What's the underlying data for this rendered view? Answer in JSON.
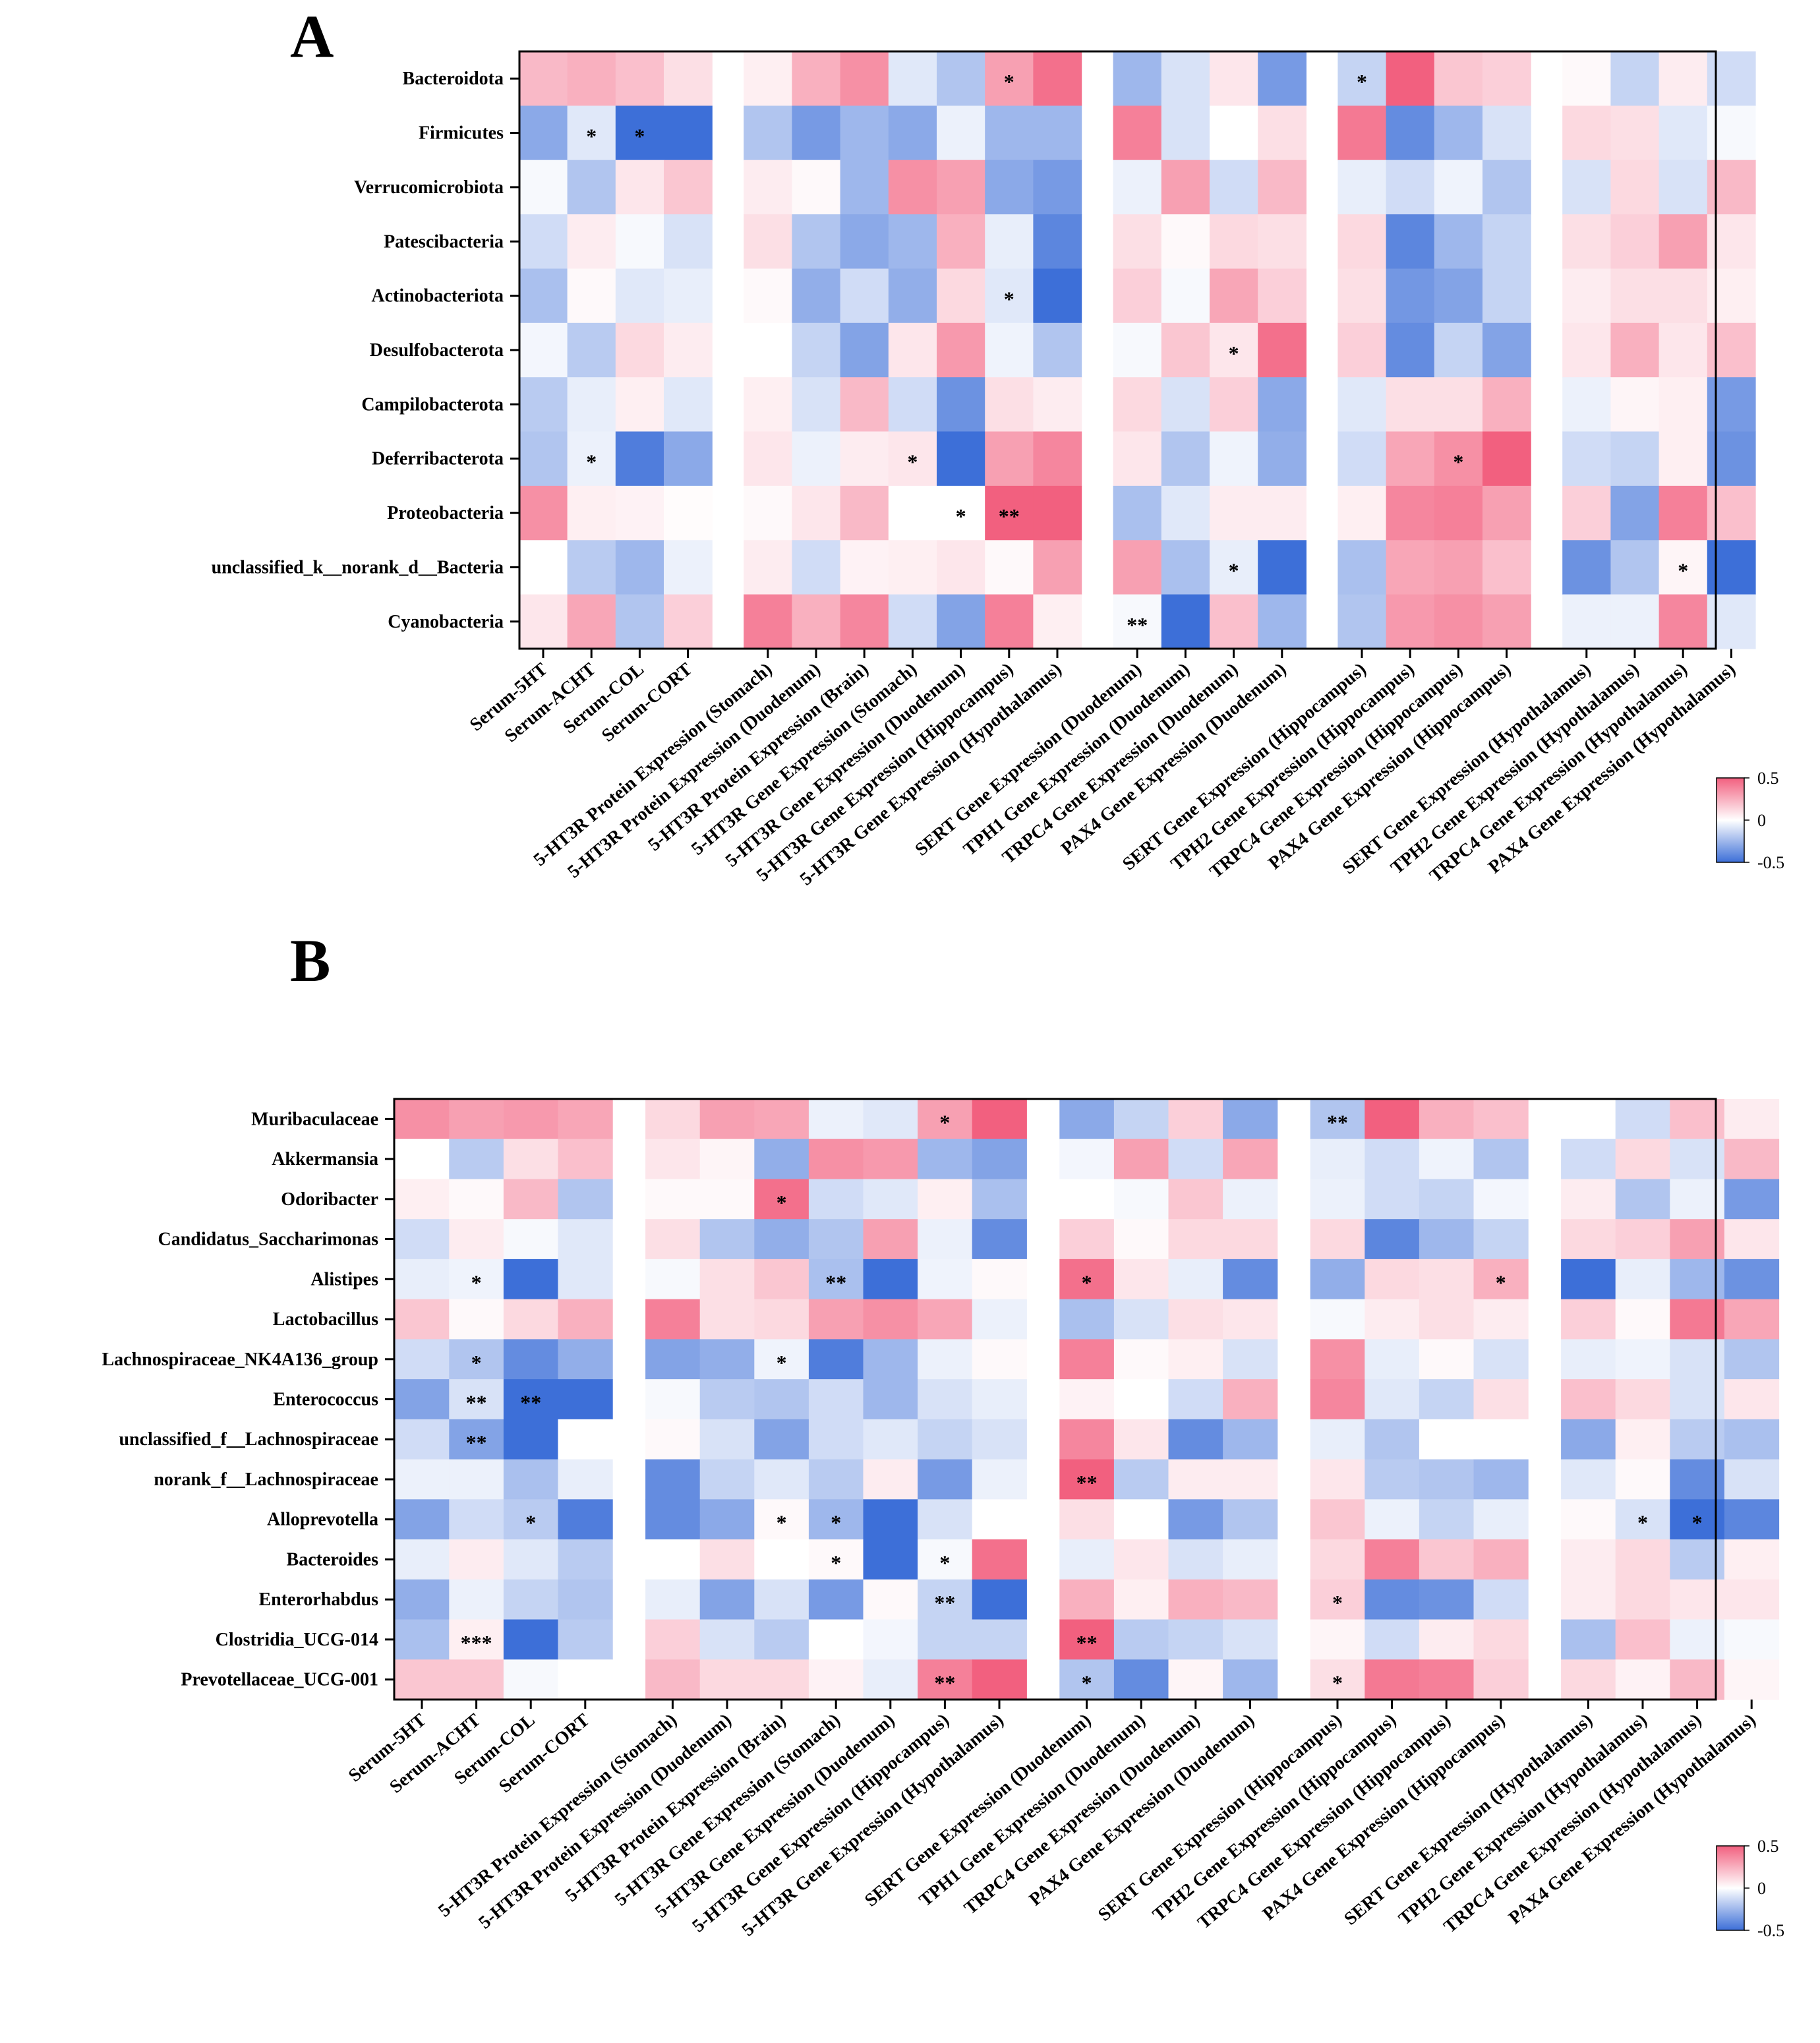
{
  "colors": {
    "neg": "#3d6fd8",
    "mid": "#ffffff",
    "pos": "#f2607f"
  },
  "legend": {
    "max_label": "0.5",
    "mid_label": "0",
    "min_label": "-0.5"
  },
  "columns": [
    "Serum-5HT",
    "Serum-ACHT",
    "Serum-COL",
    "Serum-CORT",
    "5-HT3R Protein Expression (Stomach)",
    "5-HT3R Protein Expression (Duodenum)",
    "5-HT3R Protein Expression (Brain)",
    "5-HT3R Gene Expression (Stomach)",
    "5-HT3R Gene Expression (Duodenum)",
    "5-HT3R Gene Expression (Hippocampus)",
    "5-HT3R Gene Expression (Hypothalamus)",
    "SERT Gene Expression (Duodenum)",
    "TPH1 Gene Expression (Duodenum)",
    "TRPC4 Gene Expression (Duodenum)",
    "PAX4 Gene Expression (Duodenum)",
    "SERT Gene Expression (Hippocampus)",
    "TPH2 Gene Expression (Hippocampus)",
    "TRPC4 Gene Expression (Hippocampus)",
    "PAX4 Gene Expression (Hippocampus)",
    "SERT Gene Expression (Hypothalamus)",
    "TPH2 Gene Expression (Hypothalamus)",
    "TRPC4 Gene Expression (Hypothalamus)",
    "PAX4 Gene Expression (Hypothalamus)"
  ],
  "chart_data": [
    {
      "type": "heatmap",
      "panel": "A",
      "title": "",
      "color_range": [
        -0.5,
        0.5
      ],
      "rows": [
        "Bacteroidota",
        "Firmicutes",
        "Verrucomicrobiota",
        "Patescibacteria",
        "Actinobacteriota",
        "Desulfobacterota",
        "Campilobacterota",
        "Deferribacterota",
        "Proteobacteria",
        "unclassified_k__norank_d__Bacteria",
        "Cyanobacteria"
      ],
      "values": [
        [
          0.22,
          0.25,
          0.2,
          0.1,
          0.05,
          0.25,
          0.35,
          -0.08,
          -0.2,
          0.3,
          0.45,
          -0.25,
          -0.1,
          0.08,
          -0.35,
          -0.15,
          0.5,
          0.18,
          0.15,
          0.02,
          -0.15,
          0.06,
          -0.12
        ],
        [
          -0.3,
          -0.08,
          -0.55,
          -0.5,
          -0.2,
          -0.35,
          -0.25,
          -0.3,
          -0.05,
          -0.25,
          -0.25,
          0.4,
          -0.1,
          0.0,
          0.1,
          0.42,
          -0.4,
          -0.25,
          -0.1,
          0.12,
          0.1,
          -0.08,
          -0.02
        ],
        [
          -0.02,
          -0.2,
          0.08,
          0.18,
          0.06,
          0.02,
          -0.25,
          0.35,
          0.3,
          -0.3,
          -0.35,
          -0.05,
          0.3,
          -0.12,
          0.22,
          -0.06,
          -0.12,
          -0.04,
          -0.2,
          -0.1,
          0.12,
          -0.1,
          0.22
        ],
        [
          -0.12,
          0.06,
          -0.02,
          -0.1,
          0.1,
          -0.2,
          -0.3,
          -0.25,
          0.25,
          -0.06,
          -0.42,
          0.1,
          0.02,
          0.12,
          0.1,
          0.12,
          -0.42,
          -0.25,
          -0.15,
          0.1,
          0.15,
          0.3,
          0.08
        ],
        [
          -0.22,
          0.02,
          -0.08,
          -0.06,
          0.02,
          -0.28,
          -0.12,
          -0.28,
          0.12,
          -0.08,
          -0.55,
          0.15,
          -0.02,
          0.28,
          0.15,
          0.1,
          -0.36,
          -0.32,
          -0.15,
          0.06,
          0.1,
          0.1,
          0.05
        ],
        [
          -0.03,
          -0.18,
          0.12,
          0.06,
          0.0,
          -0.15,
          -0.32,
          0.08,
          0.32,
          -0.04,
          -0.2,
          -0.02,
          0.18,
          0.08,
          0.45,
          0.15,
          -0.4,
          -0.15,
          -0.32,
          0.08,
          0.25,
          0.08,
          0.2
        ],
        [
          -0.18,
          -0.06,
          0.05,
          -0.08,
          0.05,
          -0.1,
          0.22,
          -0.12,
          -0.38,
          0.1,
          0.06,
          0.12,
          -0.1,
          0.15,
          -0.3,
          -0.08,
          0.1,
          0.1,
          0.25,
          -0.05,
          0.03,
          0.05,
          -0.35
        ],
        [
          -0.2,
          -0.05,
          -0.45,
          -0.3,
          0.08,
          -0.05,
          0.06,
          0.08,
          -0.55,
          0.3,
          0.38,
          0.08,
          -0.2,
          -0.04,
          -0.28,
          -0.12,
          0.28,
          0.35,
          0.5,
          -0.12,
          -0.15,
          0.05,
          -0.38
        ],
        [
          0.35,
          0.05,
          0.04,
          0.01,
          0.02,
          0.08,
          0.22,
          0.0,
          0.0,
          0.55,
          0.55,
          -0.22,
          -0.08,
          0.06,
          0.06,
          0.05,
          0.38,
          0.4,
          0.3,
          0.15,
          -0.32,
          0.4,
          0.2
        ],
        [
          0.0,
          -0.18,
          -0.25,
          -0.05,
          0.06,
          -0.12,
          0.04,
          0.05,
          0.08,
          0.02,
          0.3,
          0.3,
          -0.22,
          -0.06,
          -0.6,
          -0.22,
          0.28,
          0.3,
          0.2,
          -0.38,
          -0.2,
          0.03,
          -0.55
        ],
        [
          0.08,
          0.28,
          -0.2,
          0.15,
          0.4,
          0.25,
          0.38,
          -0.12,
          -0.32,
          0.4,
          0.05,
          -0.02,
          -0.65,
          0.2,
          -0.25,
          -0.2,
          0.32,
          0.35,
          0.3,
          -0.05,
          -0.05,
          0.38,
          -0.08
        ]
      ],
      "stars": [
        [
          0,
          9,
          "*"
        ],
        [
          0,
          15,
          "*"
        ],
        [
          1,
          1,
          "*"
        ],
        [
          1,
          2,
          "*"
        ],
        [
          4,
          9,
          "*"
        ],
        [
          5,
          13,
          "*"
        ],
        [
          7,
          1,
          "*"
        ],
        [
          7,
          7,
          "*"
        ],
        [
          7,
          17,
          "*"
        ],
        [
          8,
          8,
          "*"
        ],
        [
          8,
          9,
          "**"
        ],
        [
          9,
          13,
          "*"
        ],
        [
          9,
          21,
          "*"
        ],
        [
          10,
          11,
          "**"
        ]
      ]
    },
    {
      "type": "heatmap",
      "panel": "B",
      "title": "",
      "color_range": [
        -0.5,
        0.5
      ],
      "rows": [
        "Muribaculaceae",
        "Akkermansia",
        "Odoribacter",
        "Candidatus_Saccharimonas",
        "Alistipes",
        "Lactobacillus",
        "Lachnospiraceae_NK4A136_group",
        "Enterococcus",
        "unclassified_f__Lachnospiraceae",
        "norank_f__Lachnospiraceae",
        "Alloprevotella",
        "Bacteroides",
        "Enterorhabdus",
        "Clostridia_UCG-014",
        "Prevotellaceae_UCG-001"
      ],
      "values": [
        [
          0.35,
          0.3,
          0.32,
          0.28,
          0.12,
          0.3,
          0.28,
          -0.05,
          -0.08,
          0.3,
          0.55,
          -0.3,
          -0.15,
          0.15,
          -0.3,
          -0.2,
          0.55,
          0.25,
          0.2,
          0.0,
          -0.12,
          0.2,
          0.06
        ],
        [
          0.0,
          -0.18,
          0.1,
          0.2,
          0.08,
          0.03,
          -0.28,
          0.35,
          0.32,
          -0.25,
          -0.32,
          -0.03,
          0.3,
          -0.12,
          0.28,
          -0.06,
          -0.12,
          -0.04,
          -0.2,
          -0.12,
          0.12,
          -0.1,
          0.22
        ],
        [
          0.05,
          0.02,
          0.22,
          -0.2,
          0.02,
          0.02,
          0.45,
          -0.12,
          -0.08,
          0.05,
          -0.22,
          0.0,
          -0.02,
          0.18,
          -0.05,
          -0.05,
          -0.12,
          -0.15,
          -0.03,
          0.06,
          -0.2,
          -0.05,
          -0.35
        ],
        [
          -0.12,
          0.06,
          -0.02,
          -0.08,
          0.1,
          -0.2,
          -0.28,
          -0.2,
          0.3,
          -0.05,
          -0.4,
          0.15,
          0.02,
          0.12,
          0.12,
          0.12,
          -0.42,
          -0.25,
          -0.15,
          0.12,
          0.15,
          0.3,
          0.08
        ],
        [
          -0.06,
          -0.04,
          -0.55,
          -0.08,
          -0.02,
          0.1,
          0.18,
          -0.22,
          -0.6,
          -0.04,
          0.02,
          0.45,
          0.08,
          -0.06,
          -0.4,
          -0.28,
          0.12,
          0.1,
          0.25,
          -0.5,
          -0.06,
          -0.25,
          -0.38
        ],
        [
          0.18,
          0.02,
          0.12,
          0.25,
          0.4,
          0.1,
          0.12,
          0.3,
          0.35,
          0.28,
          -0.05,
          -0.22,
          -0.1,
          0.1,
          0.08,
          -0.02,
          0.06,
          0.1,
          0.06,
          0.15,
          0.02,
          0.42,
          0.28
        ],
        [
          -0.12,
          -0.2,
          -0.4,
          -0.28,
          -0.32,
          -0.28,
          -0.04,
          -0.45,
          -0.25,
          -0.05,
          0.02,
          0.4,
          0.02,
          0.05,
          -0.1,
          0.35,
          -0.06,
          0.02,
          -0.1,
          -0.06,
          -0.04,
          -0.1,
          -0.2
        ],
        [
          -0.32,
          -0.1,
          -0.55,
          -0.55,
          -0.02,
          -0.18,
          -0.2,
          -0.12,
          -0.25,
          -0.1,
          -0.06,
          0.04,
          0.0,
          -0.12,
          0.25,
          0.38,
          -0.08,
          -0.15,
          0.1,
          0.2,
          0.12,
          -0.1,
          0.08
        ],
        [
          -0.12,
          -0.32,
          -0.52,
          0.0,
          0.02,
          -0.1,
          -0.32,
          -0.12,
          -0.08,
          -0.15,
          -0.1,
          0.38,
          0.08,
          -0.4,
          -0.25,
          -0.06,
          -0.2,
          0.0,
          0.0,
          -0.3,
          0.05,
          -0.18,
          -0.22
        ],
        [
          -0.05,
          -0.05,
          -0.22,
          -0.06,
          -0.4,
          -0.15,
          -0.08,
          -0.18,
          0.06,
          -0.35,
          -0.05,
          0.55,
          -0.18,
          0.06,
          0.06,
          0.08,
          -0.18,
          -0.2,
          -0.25,
          -0.08,
          0.02,
          -0.4,
          -0.1
        ],
        [
          -0.32,
          -0.12,
          -0.18,
          -0.45,
          -0.4,
          -0.3,
          0.02,
          -0.25,
          -0.55,
          -0.1,
          0.0,
          0.1,
          0.0,
          -0.35,
          -0.2,
          0.18,
          -0.05,
          -0.15,
          -0.06,
          0.02,
          -0.1,
          -0.5,
          -0.42
        ],
        [
          -0.06,
          0.06,
          -0.08,
          -0.18,
          0.0,
          0.1,
          0.0,
          0.02,
          -0.5,
          -0.02,
          0.45,
          -0.06,
          0.08,
          -0.1,
          -0.06,
          0.12,
          0.4,
          0.18,
          0.25,
          0.06,
          0.12,
          -0.18,
          0.05
        ],
        [
          -0.28,
          -0.05,
          -0.15,
          -0.2,
          -0.06,
          -0.32,
          -0.1,
          -0.35,
          0.02,
          -0.15,
          -0.55,
          0.25,
          0.05,
          0.25,
          0.22,
          0.15,
          -0.4,
          -0.38,
          -0.12,
          0.06,
          0.12,
          0.08,
          0.08
        ],
        [
          -0.22,
          0.05,
          -0.65,
          -0.18,
          0.15,
          -0.1,
          -0.18,
          0.0,
          -0.03,
          -0.15,
          -0.15,
          0.55,
          -0.18,
          -0.15,
          -0.1,
          0.03,
          -0.12,
          0.06,
          0.12,
          -0.22,
          0.2,
          -0.05,
          -0.02
        ],
        [
          0.18,
          0.18,
          -0.02,
          0.0,
          0.22,
          0.12,
          0.12,
          0.04,
          -0.06,
          0.4,
          0.55,
          -0.2,
          -0.4,
          0.03,
          -0.25,
          0.1,
          0.42,
          0.4,
          0.15,
          0.12,
          0.04,
          0.22,
          0.03
        ]
      ],
      "stars": [
        [
          0,
          9,
          "*"
        ],
        [
          0,
          15,
          "**"
        ],
        [
          2,
          6,
          "*"
        ],
        [
          4,
          1,
          "*"
        ],
        [
          4,
          7,
          "**"
        ],
        [
          4,
          11,
          "*"
        ],
        [
          4,
          18,
          "*"
        ],
        [
          6,
          1,
          "*"
        ],
        [
          6,
          6,
          "*"
        ],
        [
          7,
          1,
          "**"
        ],
        [
          7,
          2,
          "**"
        ],
        [
          8,
          1,
          "**"
        ],
        [
          9,
          11,
          "**"
        ],
        [
          10,
          2,
          "*"
        ],
        [
          10,
          6,
          "*"
        ],
        [
          10,
          7,
          "*"
        ],
        [
          10,
          20,
          "*"
        ],
        [
          10,
          21,
          "*"
        ],
        [
          11,
          7,
          "*"
        ],
        [
          11,
          9,
          "*"
        ],
        [
          12,
          9,
          "**"
        ],
        [
          12,
          15,
          "*"
        ],
        [
          13,
          1,
          "***"
        ],
        [
          13,
          11,
          "**"
        ],
        [
          14,
          9,
          "**"
        ],
        [
          14,
          11,
          "*"
        ],
        [
          14,
          15,
          "*"
        ]
      ]
    }
  ]
}
